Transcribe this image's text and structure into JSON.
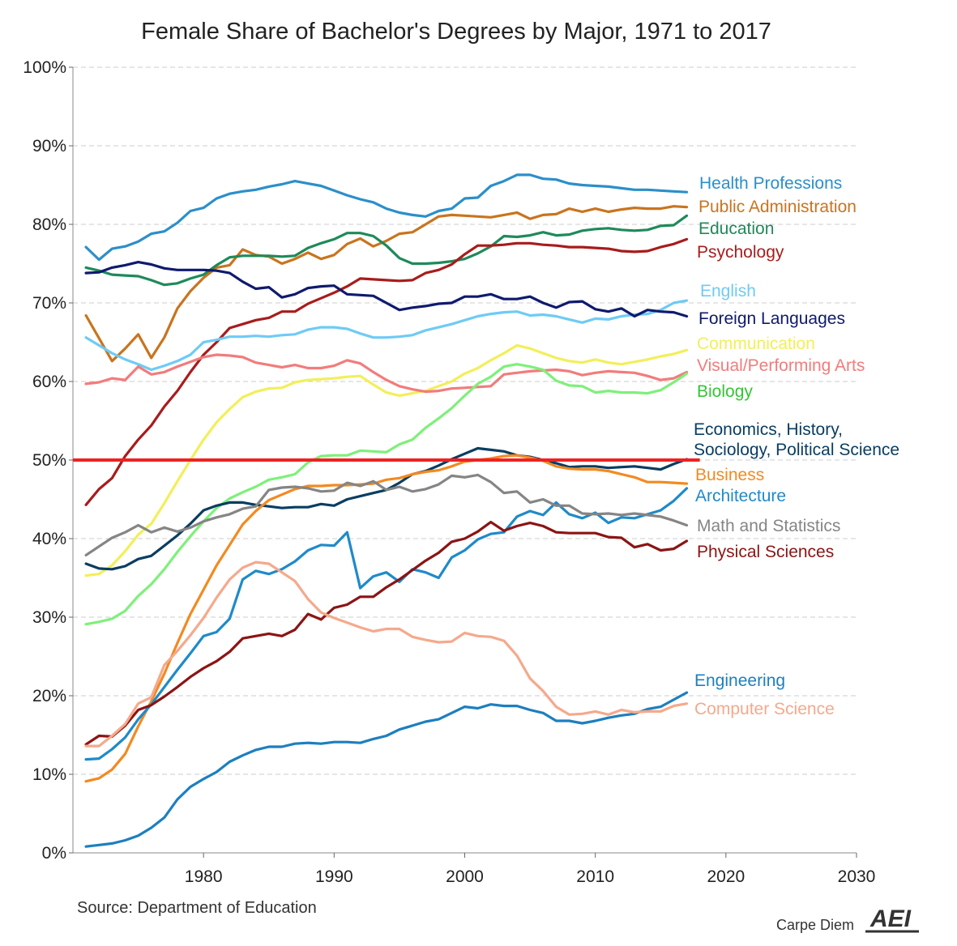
{
  "chart_data": {
    "type": "line",
    "title": "Female Share of Bachelor's Degrees by Major, 1971 to 2017",
    "xlabel": "",
    "ylabel": "",
    "xlim": [
      1970,
      2030
    ],
    "ylim": [
      0,
      100
    ],
    "x_ticks": [
      1980,
      1990,
      2000,
      2010,
      2020,
      2030
    ],
    "y_ticks": [
      0,
      10,
      20,
      30,
      40,
      50,
      60,
      70,
      80,
      90,
      100
    ],
    "y_tick_labels": [
      "0%",
      "10%",
      "20%",
      "30%",
      "40%",
      "50%",
      "60%",
      "70%",
      "80%",
      "90%",
      "100%"
    ],
    "grid": "horizontal dashed",
    "reference_line": {
      "y": 50,
      "color": "#ee2222"
    },
    "x": [
      1971,
      1972,
      1973,
      1974,
      1975,
      1976,
      1977,
      1978,
      1979,
      1980,
      1981,
      1982,
      1983,
      1984,
      1985,
      1986,
      1987,
      1988,
      1989,
      1990,
      1991,
      1992,
      1993,
      1994,
      1995,
      1996,
      1997,
      1998,
      1999,
      2000,
      2001,
      2002,
      2003,
      2004,
      2005,
      2006,
      2007,
      2008,
      2009,
      2010,
      2011,
      2012,
      2013,
      2014,
      2015,
      2016,
      2017
    ],
    "series": [
      {
        "name": "Health Professions",
        "color": "#2b8fc9",
        "values": [
          77.1,
          75.5,
          76.9,
          77.2,
          77.8,
          78.8,
          79.1,
          80.2,
          81.7,
          82.1,
          83.3,
          83.9,
          84.2,
          84.4,
          84.8,
          85.1,
          85.5,
          85.2,
          84.9,
          84.3,
          83.7,
          83.2,
          82.8,
          82.0,
          81.5,
          81.2,
          81.0,
          81.7,
          82.0,
          83.3,
          83.4,
          84.9,
          85.5,
          86.3,
          86.3,
          85.8,
          85.7,
          85.2,
          85.0,
          84.9,
          84.8,
          84.6,
          84.4,
          84.4,
          84.3,
          84.2,
          84.1
        ]
      },
      {
        "name": "Public Administration",
        "color": "#c9741f",
        "values": [
          68.4,
          65.5,
          62.6,
          64.2,
          66.0,
          63.0,
          65.6,
          69.3,
          71.5,
          73.2,
          74.5,
          74.8,
          76.8,
          76.1,
          75.9,
          75.0,
          75.6,
          76.4,
          75.6,
          76.1,
          77.5,
          78.2,
          77.2,
          77.9,
          78.8,
          79.0,
          80.0,
          81.0,
          81.2,
          81.1,
          81.0,
          80.9,
          81.2,
          81.5,
          80.7,
          81.2,
          81.3,
          82.0,
          81.6,
          82.0,
          81.6,
          81.9,
          82.1,
          82.0,
          82.0,
          82.3,
          82.2
        ]
      },
      {
        "name": "Education",
        "color": "#1e8a5a",
        "values": [
          74.5,
          74.1,
          73.6,
          73.5,
          73.4,
          72.9,
          72.3,
          72.5,
          73.1,
          73.6,
          74.8,
          75.8,
          76.0,
          76.0,
          76.0,
          75.9,
          76.0,
          77.0,
          77.6,
          78.1,
          78.9,
          78.9,
          78.5,
          77.3,
          75.7,
          75.0,
          75.0,
          75.1,
          75.3,
          75.6,
          76.3,
          77.2,
          78.5,
          78.4,
          78.6,
          79.0,
          78.6,
          78.7,
          79.2,
          79.4,
          79.5,
          79.3,
          79.2,
          79.3,
          79.8,
          79.9,
          81.1
        ]
      },
      {
        "name": "Psychology",
        "color": "#a81c1c",
        "values": [
          44.3,
          46.3,
          47.7,
          50.5,
          52.6,
          54.4,
          56.8,
          58.8,
          61.2,
          63.4,
          65.0,
          66.8,
          67.3,
          67.8,
          68.1,
          68.9,
          68.9,
          69.9,
          70.6,
          71.3,
          72.1,
          73.1,
          73.0,
          72.9,
          72.8,
          72.9,
          73.8,
          74.2,
          74.9,
          76.2,
          77.3,
          77.3,
          77.4,
          77.6,
          77.6,
          77.4,
          77.3,
          77.1,
          77.1,
          77.0,
          76.9,
          76.6,
          76.5,
          76.6,
          77.1,
          77.5,
          78.1
        ]
      },
      {
        "name": "English",
        "color": "#6ecbf5",
        "values": [
          65.6,
          64.6,
          63.6,
          62.8,
          62.2,
          61.5,
          62.0,
          62.6,
          63.4,
          65.0,
          65.3,
          65.7,
          65.7,
          65.8,
          65.7,
          65.9,
          66.0,
          66.6,
          66.9,
          66.9,
          66.7,
          66.1,
          65.6,
          65.6,
          65.7,
          65.9,
          66.5,
          66.9,
          67.3,
          67.8,
          68.3,
          68.6,
          68.8,
          68.9,
          68.4,
          68.5,
          68.3,
          67.9,
          67.5,
          68.0,
          67.9,
          68.3,
          68.5,
          68.6,
          69.1,
          70.0,
          70.3
        ]
      },
      {
        "name": "Foreign Languages",
        "color": "#0f1a6e",
        "values": [
          73.8,
          73.9,
          74.5,
          74.8,
          75.2,
          74.9,
          74.4,
          74.2,
          74.2,
          74.2,
          74.1,
          73.8,
          72.7,
          71.8,
          72.0,
          70.7,
          71.1,
          71.9,
          72.1,
          72.2,
          71.1,
          71.0,
          70.9,
          70.0,
          69.1,
          69.4,
          69.6,
          69.9,
          70.0,
          70.8,
          70.8,
          71.1,
          70.5,
          70.5,
          70.8,
          70.0,
          69.4,
          70.1,
          70.2,
          69.2,
          68.9,
          69.3,
          68.3,
          69.1,
          68.9,
          68.8,
          68.3
        ]
      },
      {
        "name": "Communication",
        "color": "#f2ef5a",
        "values": [
          35.3,
          35.5,
          36.6,
          38.4,
          40.5,
          41.9,
          44.5,
          47.3,
          50.0,
          52.6,
          54.8,
          56.5,
          58.0,
          58.7,
          59.1,
          59.2,
          59.9,
          60.2,
          60.3,
          60.4,
          60.6,
          60.7,
          59.6,
          58.6,
          58.2,
          58.5,
          58.8,
          59.4,
          60.0,
          61.0,
          61.7,
          62.7,
          63.6,
          64.6,
          64.2,
          63.6,
          63.0,
          62.6,
          62.4,
          62.8,
          62.4,
          62.2,
          62.5,
          62.8,
          63.2,
          63.5,
          64.0
        ]
      },
      {
        "name": "Visual/Performing Arts",
        "color": "#f27c7c",
        "values": [
          59.7,
          59.9,
          60.4,
          60.2,
          61.9,
          60.9,
          61.2,
          61.9,
          62.5,
          63.1,
          63.4,
          63.3,
          63.1,
          62.4,
          62.1,
          61.8,
          62.1,
          61.7,
          61.7,
          62.0,
          62.7,
          62.3,
          61.2,
          60.2,
          59.4,
          59.0,
          58.7,
          58.8,
          59.1,
          59.2,
          59.3,
          59.4,
          60.9,
          61.1,
          61.3,
          61.4,
          61.5,
          61.3,
          60.8,
          61.1,
          61.3,
          61.2,
          61.1,
          60.7,
          60.2,
          60.4,
          61.2
        ]
      },
      {
        "name": "Biology",
        "color": "#7ef07a",
        "values": [
          29.1,
          29.4,
          29.8,
          30.8,
          32.7,
          34.2,
          36.1,
          38.3,
          40.3,
          42.2,
          43.9,
          45.1,
          45.9,
          46.6,
          47.5,
          47.8,
          48.2,
          49.7,
          50.5,
          50.6,
          50.6,
          51.2,
          51.1,
          51.0,
          52.0,
          52.6,
          54.1,
          55.3,
          56.6,
          58.2,
          59.7,
          60.6,
          61.9,
          62.2,
          61.9,
          61.5,
          60.1,
          59.5,
          59.4,
          58.6,
          58.8,
          58.6,
          58.6,
          58.5,
          58.9,
          59.9,
          61.0
        ]
      },
      {
        "name": "Economics, History, Sociology, Political Science",
        "color": "#0a3d62",
        "values": [
          36.8,
          36.2,
          36.1,
          36.5,
          37.4,
          37.8,
          39.1,
          40.4,
          41.9,
          43.6,
          44.2,
          44.6,
          44.6,
          44.3,
          44.1,
          43.9,
          44.0,
          44.0,
          44.4,
          44.2,
          45.0,
          45.4,
          45.8,
          46.2,
          47.1,
          48.2,
          48.6,
          49.3,
          50.1,
          50.8,
          51.5,
          51.3,
          51.1,
          50.6,
          50.4,
          50.0,
          49.6,
          49.1,
          49.2,
          49.2,
          49.0,
          49.1,
          49.2,
          49.0,
          48.8,
          49.5,
          50.1
        ]
      },
      {
        "name": "Business",
        "color": "#f28a22",
        "values": [
          9.1,
          9.5,
          10.6,
          12.6,
          16.1,
          19.3,
          22.8,
          26.7,
          30.4,
          33.5,
          36.6,
          39.2,
          41.8,
          43.5,
          44.9,
          45.6,
          46.3,
          46.7,
          46.7,
          46.8,
          46.8,
          46.9,
          47.0,
          47.5,
          47.7,
          48.2,
          48.5,
          48.7,
          49.2,
          49.8,
          50.0,
          50.2,
          50.5,
          50.6,
          50.3,
          49.9,
          49.2,
          48.9,
          48.8,
          48.8,
          48.6,
          48.2,
          47.8,
          47.2,
          47.2,
          47.1,
          47.0
        ]
      },
      {
        "name": "Architecture",
        "color": "#1f8ac9",
        "values": [
          11.9,
          12.0,
          13.2,
          14.7,
          17.0,
          18.9,
          21.1,
          23.3,
          25.4,
          27.6,
          28.1,
          29.8,
          34.8,
          35.9,
          35.5,
          36.1,
          37.1,
          38.5,
          39.2,
          39.1,
          40.8,
          33.7,
          35.2,
          35.7,
          34.5,
          36.1,
          35.7,
          35.0,
          37.6,
          38.5,
          39.9,
          40.6,
          40.8,
          42.8,
          43.5,
          43.0,
          44.6,
          43.1,
          42.6,
          43.3,
          42.0,
          42.7,
          42.6,
          43.1,
          43.6,
          44.8,
          46.4
        ]
      },
      {
        "name": "Math and Statistics",
        "color": "#858585",
        "values": [
          37.9,
          39.0,
          40.1,
          40.8,
          41.7,
          40.8,
          41.4,
          40.9,
          41.4,
          42.2,
          42.7,
          43.1,
          43.8,
          44.1,
          46.2,
          46.5,
          46.6,
          46.4,
          46.0,
          46.1,
          47.1,
          46.7,
          47.3,
          46.2,
          46.6,
          46.0,
          46.3,
          46.9,
          48.0,
          47.8,
          48.1,
          47.2,
          45.8,
          46.0,
          44.6,
          45.0,
          44.2,
          44.2,
          43.2,
          43.1,
          43.2,
          43.0,
          43.2,
          43.0,
          42.8,
          42.3,
          41.7
        ]
      },
      {
        "name": "Physical Sciences",
        "color": "#8b1414",
        "values": [
          13.8,
          14.9,
          14.8,
          16.2,
          18.2,
          18.8,
          19.9,
          21.1,
          22.4,
          23.5,
          24.4,
          25.6,
          27.3,
          27.6,
          27.9,
          27.6,
          28.4,
          30.4,
          29.7,
          31.2,
          31.6,
          32.6,
          32.6,
          33.8,
          34.8,
          36.0,
          37.2,
          38.2,
          39.6,
          40.0,
          40.9,
          42.1,
          41.0,
          41.6,
          42.0,
          41.6,
          40.8,
          40.7,
          40.7,
          40.7,
          40.2,
          40.1,
          38.9,
          39.3,
          38.5,
          38.7,
          39.7
        ]
      },
      {
        "name": "Engineering",
        "color": "#1c7fbf",
        "values": [
          0.8,
          1.0,
          1.2,
          1.6,
          2.2,
          3.2,
          4.5,
          6.8,
          8.4,
          9.4,
          10.3,
          11.6,
          12.4,
          13.1,
          13.5,
          13.5,
          13.9,
          14.0,
          13.9,
          14.1,
          14.1,
          14.0,
          14.5,
          14.9,
          15.7,
          16.2,
          16.7,
          17.0,
          17.8,
          18.6,
          18.4,
          18.9,
          18.7,
          18.7,
          18.2,
          17.8,
          16.8,
          16.8,
          16.5,
          16.8,
          17.2,
          17.5,
          17.7,
          18.3,
          18.6,
          19.5,
          20.4
        ]
      },
      {
        "name": "Computer Science",
        "color": "#f5a98c",
        "values": [
          13.6,
          13.6,
          14.9,
          16.4,
          19.0,
          19.8,
          23.9,
          25.7,
          27.7,
          29.9,
          32.5,
          34.8,
          36.3,
          37.0,
          36.8,
          35.7,
          34.6,
          32.3,
          30.6,
          29.9,
          29.3,
          28.7,
          28.2,
          28.5,
          28.5,
          27.5,
          27.1,
          26.8,
          26.9,
          28.0,
          27.6,
          27.5,
          27.0,
          25.1,
          22.2,
          20.6,
          18.6,
          17.6,
          17.7,
          18.0,
          17.6,
          18.2,
          17.9,
          18.0,
          18.0,
          18.7,
          19.0
        ]
      }
    ],
    "labels": [
      {
        "text": "Health Professions",
        "series": "Health Professions"
      },
      {
        "text": "Public Administration",
        "series": "Public Administration"
      },
      {
        "text": "Education",
        "series": "Education"
      },
      {
        "text": "Psychology",
        "series": "Psychology"
      },
      {
        "text": "English",
        "series": "English"
      },
      {
        "text": "Foreign Languages",
        "series": "Foreign Languages"
      },
      {
        "text": "Communication",
        "series": "Communication"
      },
      {
        "text": "Visual/Performing Arts",
        "series": "Visual/Performing Arts"
      },
      {
        "text": "Biology",
        "series": "Biology",
        "color": "#34c534"
      },
      {
        "text": "Economics, History,",
        "series": "Economics, History, Sociology, Political Science"
      },
      {
        "text": "Sociology, Political Science",
        "series": "Economics, History, Sociology, Political Science"
      },
      {
        "text": "Business",
        "series": "Business"
      },
      {
        "text": "Architecture",
        "series": "Architecture"
      },
      {
        "text": "Math and Statistics",
        "series": "Math and Statistics"
      },
      {
        "text": "Physical Sciences",
        "series": "Physical Sciences"
      },
      {
        "text": "Engineering",
        "series": "Engineering"
      },
      {
        "text": "Computer Science",
        "series": "Computer Science"
      }
    ],
    "source": "Source: Department of Education",
    "brand": "Carpe Diem",
    "logo": "AEI"
  }
}
